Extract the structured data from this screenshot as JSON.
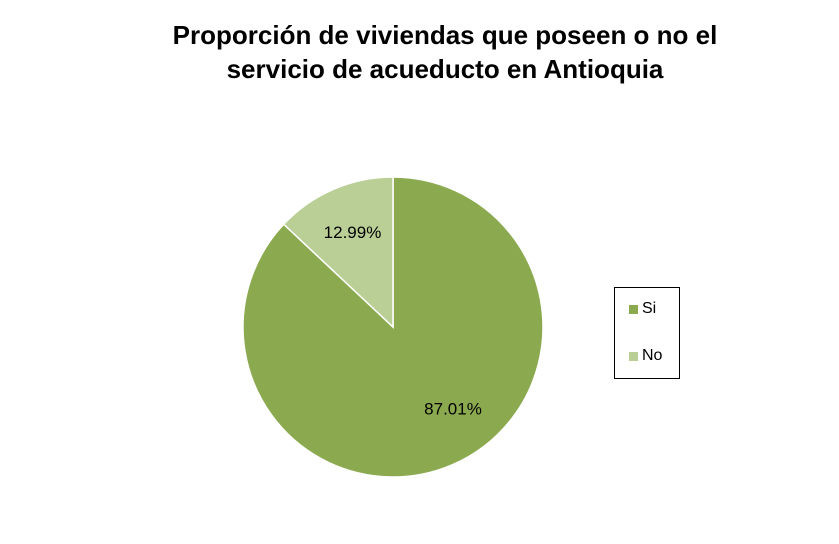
{
  "chart_data": {
    "type": "pie",
    "title_lines": [
      "Proporción de viviendas que poseen o no el",
      "servicio de acueducto en Antioquia"
    ],
    "slices": [
      {
        "label": "Si",
        "value": 87.01,
        "value_label": "87.01%",
        "color": "#8BA94F"
      },
      {
        "label": "No",
        "value": 12.99,
        "value_label": "12.99%",
        "color": "#BACF96"
      }
    ],
    "legend_position": "right"
  }
}
